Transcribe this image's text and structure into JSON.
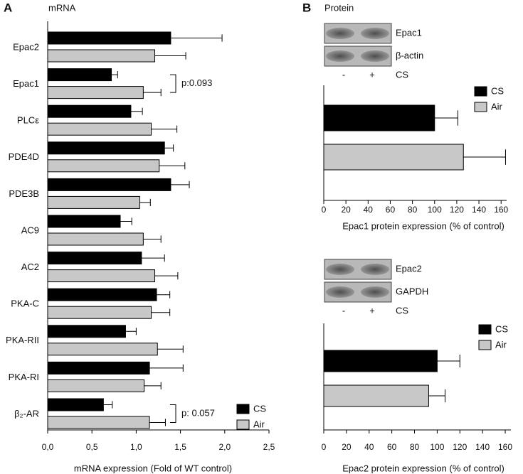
{
  "chart_data": [
    {
      "type": "bar",
      "orientation": "horizontal",
      "panel": "A",
      "title": "mRNA",
      "categories": [
        "Epac2",
        "Epac1",
        "PLCε",
        "PDE4D",
        "PDE3B",
        "AC9",
        "AC2",
        "PKA-C",
        "PKA-RII",
        "PKA-RI",
        "β₂-AR"
      ],
      "series": [
        {
          "name": "CS",
          "color": "#000000",
          "values": [
            1.39,
            0.72,
            0.94,
            1.32,
            1.39,
            0.82,
            1.06,
            1.23,
            0.88,
            1.15,
            0.63
          ],
          "errors": [
            0.58,
            0.07,
            0.13,
            0.1,
            0.21,
            0.13,
            0.26,
            0.15,
            0.12,
            0.38,
            0.1
          ]
        },
        {
          "name": "Air",
          "color": "#c8c8c8",
          "values": [
            1.21,
            1.08,
            1.17,
            1.26,
            1.04,
            1.08,
            1.21,
            1.17,
            1.24,
            1.09,
            1.15
          ],
          "errors": [
            0.35,
            0.2,
            0.29,
            0.29,
            0.12,
            0.2,
            0.26,
            0.21,
            0.29,
            0.19,
            0.18
          ]
        }
      ],
      "xlabel": "mRNA expression (Fold of WT control)",
      "xlim": [
        0,
        2.5
      ],
      "xticks": [
        {
          "value": 0,
          "label": "0,0"
        },
        {
          "value": 0.5,
          "label": "0,5"
        },
        {
          "value": 1,
          "label": "1,0"
        },
        {
          "value": 1.5,
          "label": "1,5"
        },
        {
          "value": 2,
          "label": "2,0"
        },
        {
          "value": 2.5,
          "label": "2,5"
        }
      ],
      "legend": "lower right",
      "annotations": [
        "p:0.093",
        "p: 0.057"
      ]
    },
    {
      "type": "bar",
      "orientation": "horizontal",
      "panel": "B",
      "title": "Protein",
      "blot": {
        "bands": [
          "Epac1",
          "β-actin"
        ],
        "lanes": [
          "-",
          "+"
        ],
        "treatment": "CS"
      },
      "categories": [
        null
      ],
      "series": [
        {
          "name": "CS",
          "color": "#000000",
          "values": [
            100
          ],
          "errors": [
            21
          ]
        },
        {
          "name": "Air",
          "color": "#c8c8c8",
          "values": [
            126
          ],
          "errors": [
            38
          ]
        }
      ],
      "xlabel": "Epac1  protein expression (% of control)",
      "xlim": [
        0,
        165
      ],
      "xticks": [
        0,
        20,
        40,
        60,
        80,
        100,
        120,
        140,
        160
      ],
      "legend": "upper right"
    },
    {
      "type": "bar",
      "orientation": "horizontal",
      "blot": {
        "bands": [
          "Epac2",
          "GAPDH"
        ],
        "lanes": [
          "-",
          "+"
        ],
        "treatment": "CS"
      },
      "categories": [
        null
      ],
      "series": [
        {
          "name": "CS",
          "color": "#000000",
          "values": [
            100
          ],
          "errors": [
            20
          ]
        },
        {
          "name": "Air",
          "color": "#c8c8c8",
          "values": [
            92.5
          ],
          "errors": [
            14.5
          ]
        }
      ],
      "xlabel": "Epac2 protein expression (% of control)",
      "xlim": [
        0,
        165
      ],
      "xticks": [
        0,
        20,
        40,
        60,
        80,
        100,
        120,
        140,
        160
      ],
      "legend": "upper right"
    }
  ]
}
